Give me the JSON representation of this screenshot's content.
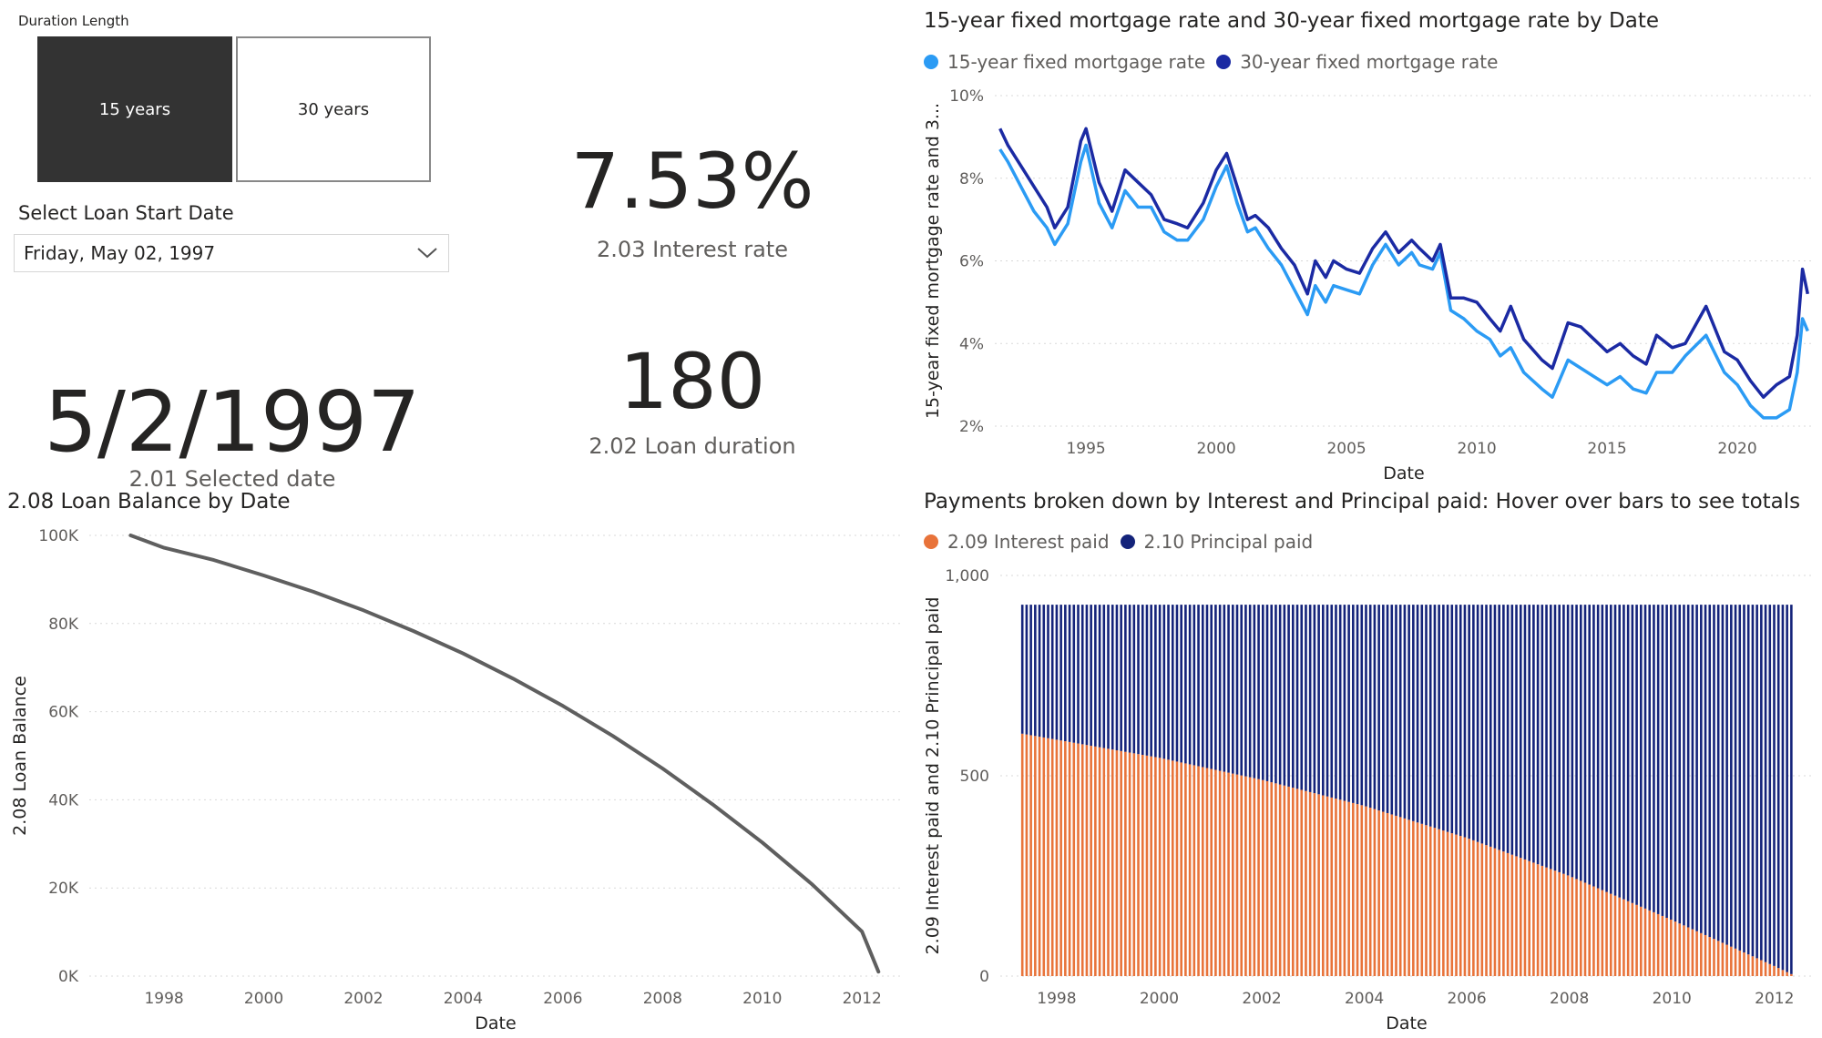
{
  "slicer": {
    "title": "Duration Length",
    "options": [
      "15 years",
      "30 years"
    ],
    "selected": "15 years"
  },
  "date_select": {
    "label": "Select Loan Start Date",
    "value": "Friday, May 02, 1997"
  },
  "cards": {
    "interest_rate": {
      "value": "7.53%",
      "label": "2.03 Interest rate"
    },
    "loan_duration": {
      "value": "180",
      "label": "2.02 Loan duration"
    },
    "selected_date": {
      "value": "5/2/1997",
      "label": "2.01 Selected date"
    }
  },
  "colors": {
    "rate15": "#2b9bf4",
    "rate30": "#1b2aa3",
    "interest": "#e8733a",
    "principal": "#14237a",
    "balance": "#5f5f5f",
    "grid": "#d9d9d9",
    "axis_text": "#605e5c"
  },
  "chart_data": [
    {
      "id": "mortgage_rates",
      "type": "line",
      "title": "15-year fixed mortgage rate and 30-year fixed mortgage rate by Date",
      "xlabel": "Date",
      "ylabel": "15-year fixed mortgage rate and 3...",
      "ylim": [
        2,
        10
      ],
      "yticks": [
        "2%",
        "4%",
        "6%",
        "8%",
        "10%"
      ],
      "xticks": [
        "1995",
        "2000",
        "2005",
        "2010",
        "2015",
        "2020"
      ],
      "legend_position": "top-left",
      "x": [
        1991.7,
        1992.0,
        1992.5,
        1993.0,
        1993.5,
        1993.8,
        1994.3,
        1994.8,
        1995.0,
        1995.5,
        1996.0,
        1996.5,
        1997.0,
        1997.5,
        1998.0,
        1998.5,
        1998.9,
        1999.5,
        2000.0,
        2000.4,
        2000.8,
        2001.2,
        2001.5,
        2002.0,
        2002.5,
        2003.0,
        2003.5,
        2003.8,
        2004.2,
        2004.5,
        2005.0,
        2005.5,
        2006.0,
        2006.5,
        2007.0,
        2007.5,
        2007.8,
        2008.3,
        2008.6,
        2009.0,
        2009.5,
        2010.0,
        2010.5,
        2010.9,
        2011.3,
        2011.8,
        2012.5,
        2012.9,
        2013.5,
        2014.0,
        2014.5,
        2015.0,
        2015.5,
        2016.0,
        2016.5,
        2016.9,
        2017.5,
        2018.0,
        2018.8,
        2019.5,
        2020.0,
        2020.5,
        2021.0,
        2021.5,
        2022.0,
        2022.3,
        2022.5,
        2022.7
      ],
      "series": [
        {
          "name": "15-year fixed mortgage rate",
          "values": [
            8.7,
            8.4,
            7.8,
            7.2,
            6.8,
            6.4,
            6.9,
            8.4,
            8.8,
            7.4,
            6.8,
            7.7,
            7.3,
            7.3,
            6.7,
            6.5,
            6.5,
            7.0,
            7.8,
            8.3,
            7.4,
            6.7,
            6.8,
            6.3,
            5.9,
            5.3,
            4.7,
            5.4,
            5.0,
            5.4,
            5.3,
            5.2,
            5.9,
            6.4,
            5.9,
            6.2,
            5.9,
            5.8,
            6.2,
            4.8,
            4.6,
            4.3,
            4.1,
            3.7,
            3.9,
            3.3,
            2.9,
            2.7,
            3.6,
            3.4,
            3.2,
            3.0,
            3.2,
            2.9,
            2.8,
            3.3,
            3.3,
            3.7,
            4.2,
            3.3,
            3.0,
            2.5,
            2.2,
            2.2,
            2.4,
            3.3,
            4.6,
            4.3
          ]
        },
        {
          "name": "30-year fixed mortgage rate",
          "values": [
            9.2,
            8.8,
            8.3,
            7.8,
            7.3,
            6.8,
            7.3,
            8.9,
            9.2,
            7.9,
            7.2,
            8.2,
            7.9,
            7.6,
            7.0,
            6.9,
            6.8,
            7.4,
            8.2,
            8.6,
            7.8,
            7.0,
            7.1,
            6.8,
            6.3,
            5.9,
            5.2,
            6.0,
            5.6,
            6.0,
            5.8,
            5.7,
            6.3,
            6.7,
            6.2,
            6.5,
            6.3,
            6.0,
            6.4,
            5.1,
            5.1,
            5.0,
            4.6,
            4.3,
            4.9,
            4.1,
            3.6,
            3.4,
            4.5,
            4.4,
            4.1,
            3.8,
            4.0,
            3.7,
            3.5,
            4.2,
            3.9,
            4.0,
            4.9,
            3.8,
            3.6,
            3.1,
            2.7,
            3.0,
            3.2,
            4.2,
            5.8,
            5.2
          ]
        }
      ]
    },
    {
      "id": "loan_balance",
      "type": "line",
      "title": "2.08 Loan Balance by Date",
      "xlabel": "Date",
      "ylabel": "2.08 Loan Balance",
      "ylim": [
        0,
        100000
      ],
      "yticks": [
        "0K",
        "20K",
        "40K",
        "60K",
        "80K",
        "100K"
      ],
      "xticks": [
        "1998",
        "2000",
        "2002",
        "2004",
        "2006",
        "2008",
        "2010",
        "2012"
      ],
      "x": [
        1997.33,
        1998,
        1999,
        2000,
        2001,
        2002,
        2003,
        2004,
        2005,
        2006,
        2007,
        2008,
        2009,
        2010,
        2011,
        2012,
        2012.33
      ],
      "series": [
        {
          "name": "",
          "values": [
            100000,
            97200,
            94400,
            90900,
            87200,
            83000,
            78300,
            73200,
            67500,
            61300,
            54500,
            47100,
            39000,
            30300,
            20800,
            10100,
            1000
          ]
        }
      ]
    },
    {
      "id": "payments",
      "type": "bar",
      "stacked": true,
      "title": "Payments broken down by Interest and Principal paid: Hover over bars to see totals",
      "xlabel": "Date",
      "ylabel": "2.09 Interest paid and 2.10 Principal paid",
      "ylim": [
        0,
        1000
      ],
      "yticks": [
        "0",
        "500",
        "1,000"
      ],
      "xticks": [
        "1998",
        "2000",
        "2002",
        "2004",
        "2006",
        "2008",
        "2010",
        "2012"
      ],
      "x_start": 1997.33,
      "x_end": 2012.33,
      "bar_count": 180,
      "total_payment": 927,
      "interest_x": [
        1997.33,
        1998,
        2000,
        2002,
        2004,
        2006,
        2008,
        2010,
        2012,
        2012.33
      ],
      "interest_values": [
        605,
        590,
        545,
        490,
        425,
        345,
        250,
        140,
        25,
        5
      ],
      "series": [
        {
          "name": "2.09 Interest paid"
        },
        {
          "name": "2.10 Principal paid"
        }
      ]
    }
  ]
}
